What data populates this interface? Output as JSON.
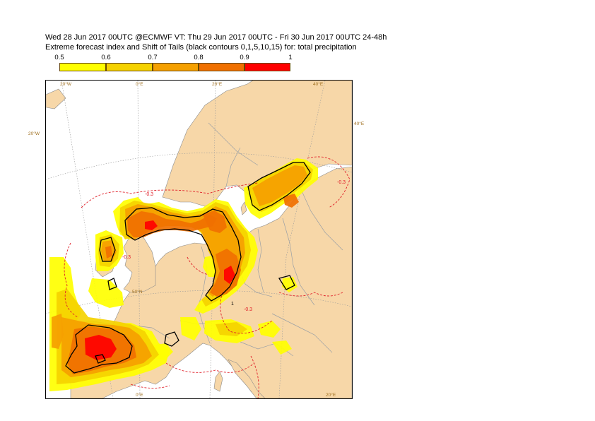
{
  "title_line1": "Wed 28 Jun 2017 00UTC @ECMWF VT: Thu 29 Jun 2017 00UTC - Fri 30 Jun 2017 00UTC  24-48h",
  "title_line2": "Extreme forecast index and Shift of Tails (black contours 0,1,5,10,15) for: total precipitation",
  "legend": {
    "ticks": [
      "0.5",
      "0.6",
      "0.7",
      "0.8",
      "0.9",
      "1"
    ],
    "colors": [
      "#ffff00",
      "#f5d200",
      "#f5a000",
      "#f07000",
      "#ff0000"
    ]
  },
  "map": {
    "sea_color": "#ffffff",
    "land_color": "#f7d7a8",
    "border_color": "#9aa0a6",
    "efi_neg_contour_color": "#e0202a",
    "sot_contour_color": "#000000",
    "grid_labels": {
      "top_20w": "20°W",
      "top_0e": "0°E",
      "top_20e": "20°E",
      "top_40e": "40°E",
      "left_20w": "20°W",
      "right_40e": "40°E",
      "lat_50n": "50°N",
      "bottom_0e": "0°E",
      "bottom_20e": "20°E"
    },
    "contour_labels": {
      "neg_1": "-0.3",
      "neg_2": "-0.3",
      "neg_3": "-0.3",
      "neg_4": "-0.3",
      "sot_1": "1"
    }
  }
}
